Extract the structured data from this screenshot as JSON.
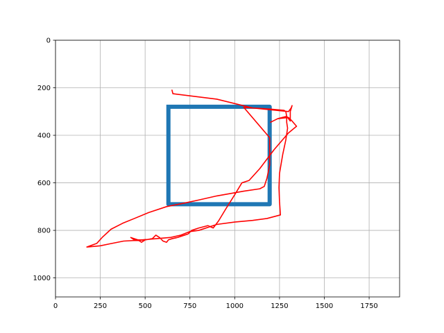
{
  "chart_data": {
    "type": "line",
    "title": "",
    "xlabel": "",
    "ylabel": "",
    "xlim": [
      0,
      1920
    ],
    "ylim": [
      1080,
      0
    ],
    "y_inverted": true,
    "grid": true,
    "x_ticks": [
      0,
      250,
      500,
      750,
      1000,
      1250,
      1500,
      1750
    ],
    "y_ticks": [
      0,
      200,
      400,
      600,
      800,
      1000
    ],
    "series": [
      {
        "color": "#1f77b4",
        "style": "thick",
        "points": [
          [
            630,
            280
          ],
          [
            1195,
            280
          ],
          [
            1195,
            690
          ],
          [
            630,
            690
          ],
          [
            630,
            280
          ]
        ]
      },
      {
        "color": "#ff0000",
        "style": "thin",
        "points": [
          [
            650,
            210
          ],
          [
            655,
            225
          ],
          [
            900,
            248
          ],
          [
            1100,
            285
          ],
          [
            1300,
            300
          ],
          [
            1315,
            285
          ],
          [
            1320,
            275
          ],
          [
            1310,
            300
          ],
          [
            1310,
            340
          ],
          [
            1290,
            320
          ],
          [
            1240,
            330
          ],
          [
            1200,
            345
          ],
          [
            1240,
            330
          ],
          [
            1300,
            325
          ],
          [
            1320,
            340
          ],
          [
            1345,
            362
          ],
          [
            1300,
            390
          ],
          [
            1220,
            460
          ],
          [
            1140,
            540
          ],
          [
            1080,
            590
          ],
          [
            1040,
            600
          ],
          [
            1000,
            650
          ],
          [
            950,
            710
          ],
          [
            910,
            760
          ],
          [
            880,
            790
          ],
          [
            850,
            780
          ],
          [
            800,
            790
          ],
          [
            760,
            800
          ],
          [
            740,
            815
          ],
          [
            720,
            820
          ],
          [
            680,
            830
          ],
          [
            650,
            835
          ],
          [
            630,
            840
          ],
          [
            620,
            850
          ],
          [
            600,
            845
          ],
          [
            580,
            830
          ],
          [
            560,
            820
          ],
          [
            540,
            835
          ],
          [
            500,
            840
          ],
          [
            480,
            850
          ],
          [
            460,
            840
          ],
          [
            420,
            830
          ],
          [
            440,
            840
          ],
          [
            480,
            840
          ],
          [
            560,
            835
          ],
          [
            640,
            830
          ],
          [
            700,
            820
          ],
          [
            750,
            805
          ],
          [
            800,
            800
          ],
          [
            900,
            775
          ],
          [
            1000,
            765
          ],
          [
            1100,
            758
          ],
          [
            1180,
            750
          ],
          [
            1255,
            735
          ],
          [
            1250,
            680
          ],
          [
            1247,
            620
          ],
          [
            1250,
            560
          ],
          [
            1268,
            480
          ],
          [
            1285,
            420
          ],
          [
            1295,
            370
          ],
          [
            1290,
            345
          ],
          [
            1290,
            320
          ],
          [
            1285,
            300
          ],
          [
            1275,
            295
          ],
          [
            1200,
            290
          ],
          [
            1100,
            285
          ],
          [
            1050,
            282
          ],
          [
            1195,
            410
          ],
          [
            1195,
            525
          ],
          [
            1180,
            580
          ],
          [
            1165,
            615
          ],
          [
            1140,
            625
          ],
          [
            1050,
            635
          ],
          [
            900,
            655
          ],
          [
            800,
            672
          ],
          [
            720,
            685
          ],
          [
            620,
            700
          ],
          [
            520,
            725
          ],
          [
            440,
            750
          ],
          [
            375,
            770
          ],
          [
            310,
            795
          ],
          [
            260,
            830
          ],
          [
            230,
            855
          ],
          [
            175,
            870
          ],
          [
            250,
            865
          ],
          [
            300,
            857
          ],
          [
            380,
            845
          ],
          [
            500,
            840
          ]
        ]
      }
    ]
  }
}
